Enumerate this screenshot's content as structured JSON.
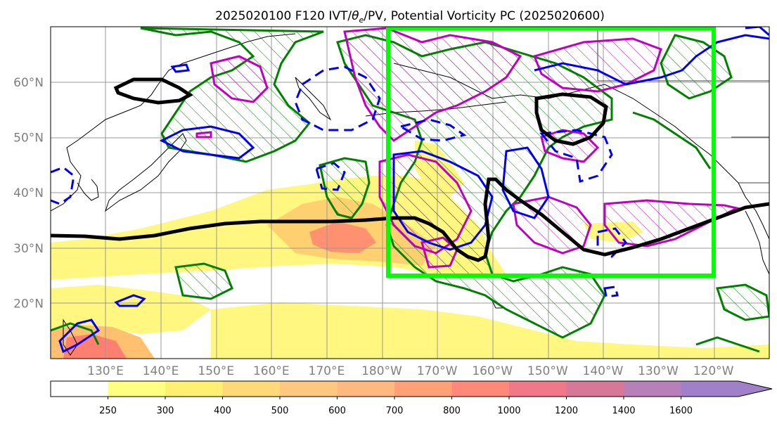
{
  "title_prefix": "2025020100 F120 IVT/",
  "title_theta": "θ",
  "title_theta_sub": "e",
  "title_suffix": "/PV, Potential Vorticity PC (2025020600)",
  "lat_labels": [
    {
      "lat": 60,
      "label": "60°N"
    },
    {
      "lat": 50,
      "label": "50°N"
    },
    {
      "lat": 40,
      "label": "40°N"
    },
    {
      "lat": 30,
      "label": "30°N"
    },
    {
      "lat": 20,
      "label": "20°N"
    }
  ],
  "lon_labels": [
    {
      "lon": 130,
      "label": "130°E"
    },
    {
      "lon": 140,
      "label": "140°E"
    },
    {
      "lon": 150,
      "label": "150°E"
    },
    {
      "lon": 160,
      "label": "160°E"
    },
    {
      "lon": 170,
      "label": "170°E"
    },
    {
      "lon": 180,
      "label": "180°W"
    },
    {
      "lon": 190,
      "label": "170°W"
    },
    {
      "lon": 200,
      "label": "160°W"
    },
    {
      "lon": 210,
      "label": "150°W"
    },
    {
      "lon": 220,
      "label": "140°W"
    },
    {
      "lon": 230,
      "label": "130°W"
    },
    {
      "lon": 240,
      "label": "120°W"
    }
  ],
  "colorbar": {
    "levels": [
      "250",
      "300",
      "400",
      "500",
      "600",
      "700",
      "800",
      "1000",
      "1200",
      "1400",
      "1600"
    ],
    "colors": [
      "#ffff80",
      "#fff070",
      "#ffd878",
      "#ffc880",
      "#ffb880",
      "#ffa078",
      "#ff8878",
      "#f07888",
      "#d87898",
      "#b880b8",
      "#a080c8"
    ]
  },
  "colors": {
    "ivt_light": "#fff780",
    "ivt_mid": "#ffd070",
    "ivt_high": "#ff9070",
    "box": "#00ff00",
    "pv_green": "#008000",
    "pv_magenta": "#c000c0",
    "pv_blue": "#0000ee",
    "jet": "#000000"
  }
}
